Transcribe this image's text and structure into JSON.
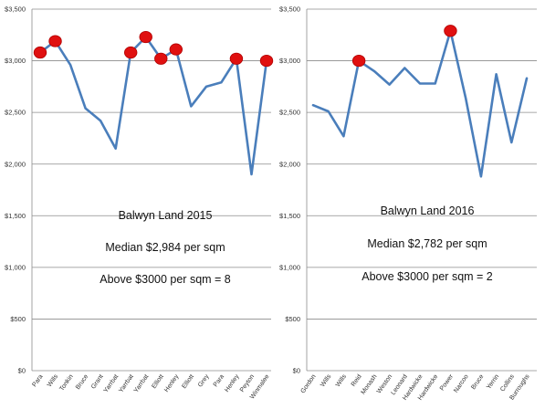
{
  "colors": {
    "line": "#4a7ebb",
    "marker": "#e01010",
    "grid": "#8c8c8c"
  },
  "chart_data": [
    {
      "type": "line",
      "title": "",
      "xlabel": "",
      "ylabel": "",
      "ylim": [
        0,
        3500
      ],
      "yticks": [
        0,
        500,
        1000,
        1500,
        2000,
        2500,
        3000,
        3500
      ],
      "ytick_labels": [
        "$0",
        "$500",
        "$1,000",
        "$1,500",
        "$2,000",
        "$2,500",
        "$3,000",
        "$3,500"
      ],
      "grid": true,
      "categories": [
        "Para",
        "Wills",
        "Tonkin",
        "Bruce",
        "Grant",
        "Yarrbat",
        "Yarrbat",
        "Yarrbat",
        "Elliott",
        "Henley",
        "Elliott",
        "Grey",
        "Para",
        "Henley",
        "Peyton",
        "Winmalee"
      ],
      "series": [
        {
          "values": [
            3080,
            3190,
            2960,
            2540,
            2420,
            2150,
            3080,
            3230,
            3020,
            3110,
            2560,
            2750,
            2790,
            3020,
            1900,
            3000
          ]
        }
      ],
      "highlighted_indices": [
        0,
        1,
        6,
        7,
        8,
        9,
        13,
        15
      ],
      "annotations": [
        "Balwyn Land 2015",
        "Median $2,984 per sqm",
        "Above $3000 per sqm = 8"
      ]
    },
    {
      "type": "line",
      "title": "",
      "xlabel": "",
      "ylabel": "",
      "ylim": [
        0,
        3500
      ],
      "yticks": [
        0,
        500,
        1000,
        1500,
        2000,
        2500,
        3000,
        3500
      ],
      "ytick_labels": [
        "$0",
        "$500",
        "$1,000",
        "$1,500",
        "$2,000",
        "$2,500",
        "$3,000",
        "$3,500"
      ],
      "grid": true,
      "categories": [
        "Gordon",
        "Wills",
        "Wills",
        "Reid",
        "Monash",
        "Weston",
        "Leonard",
        "Hardwicke",
        "Hardwicke",
        "Power",
        "Narcoo",
        "Bruce",
        "Yerrin",
        "Collins",
        "Burroughs"
      ],
      "series": [
        {
          "values": [
            2570,
            2510,
            2270,
            3000,
            2900,
            2770,
            2930,
            2780,
            2780,
            3290,
            2640,
            1880,
            2870,
            2210,
            2830
          ]
        }
      ],
      "highlighted_indices": [
        3,
        9
      ],
      "annotations": [
        "Balwyn Land 2016",
        "Median $2,782 per sqm",
        "Above $3000 per sqm = 2"
      ]
    }
  ]
}
